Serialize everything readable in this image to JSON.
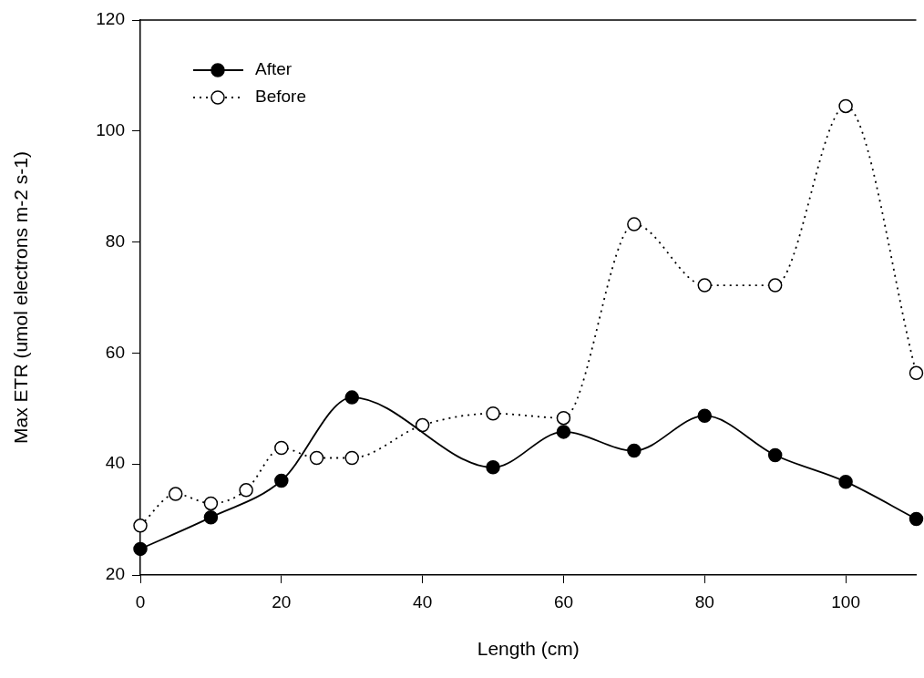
{
  "chart_data": {
    "type": "line",
    "xlabel": "Length (cm)",
    "ylabel": "Max ETR (umol electrons m-2 s-1)",
    "xlim": [
      0,
      110
    ],
    "xticks": [
      0,
      20,
      40,
      60,
      80,
      100
    ],
    "ylim": [
      20,
      120
    ],
    "yticks": [
      20,
      40,
      60,
      80,
      100,
      120
    ],
    "legend": "top left",
    "marker": "circle",
    "grid": false,
    "series": [
      {
        "name": "After",
        "color": "#000000",
        "line_style": "solid",
        "x": [
          0,
          10,
          20,
          30,
          50,
          60,
          70,
          80,
          90,
          100,
          110
        ],
        "values": [
          24.7,
          30.4,
          37.0,
          52.0,
          39.4,
          45.8,
          42.4,
          48.7,
          41.6,
          36.8,
          30.1
        ]
      },
      {
        "name": "Before",
        "color": "#000000",
        "line_style": "dotted",
        "x": [
          0,
          5,
          10,
          15,
          20,
          25,
          30,
          40,
          50,
          60,
          70,
          80,
          90,
          100,
          110
        ],
        "values": [
          28.9,
          34.6,
          32.9,
          35.3,
          42.9,
          41.1,
          41.1,
          47.0,
          49.1,
          48.3,
          83.2,
          72.2,
          72.2,
          104.5,
          56.4
        ]
      }
    ]
  }
}
